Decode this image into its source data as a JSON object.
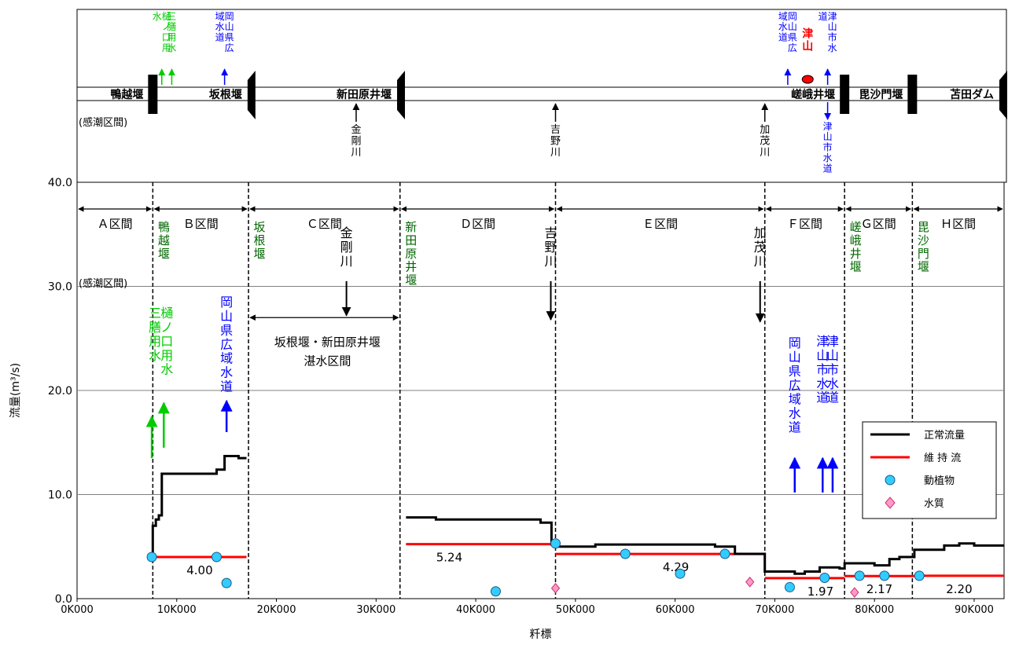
{
  "chart_data": {
    "type": "line",
    "title": "",
    "xlabel": "粁標",
    "ylabel": "流量(m³/s)",
    "xlim": [
      0,
      93000
    ],
    "ylim": [
      0,
      40
    ],
    "x_ticks": [
      0,
      10000,
      20000,
      30000,
      40000,
      50000,
      60000,
      70000,
      80000,
      90000
    ],
    "x_tick_labels": [
      "0K000",
      "10K000",
      "20K000",
      "30K000",
      "40K000",
      "50K000",
      "60K000",
      "70K000",
      "80K000",
      "90K000"
    ],
    "y_ticks": [
      0,
      10,
      20,
      30,
      40
    ],
    "y_tick_labels": [
      "0.0",
      "10.0",
      "20.0",
      "30.0",
      "40.0"
    ],
    "legend": {
      "position": "right",
      "items": [
        {
          "label": "正常流量",
          "kind": "line",
          "color": "#000000"
        },
        {
          "label": "維 持 流",
          "kind": "line",
          "color": "#ff0000"
        },
        {
          "label": "動植物",
          "kind": "circle",
          "color": "#33ccff"
        },
        {
          "label": "水質",
          "kind": "diamond",
          "color": "#ff99cc"
        }
      ]
    },
    "series": [
      {
        "name": "正常流量",
        "color": "#000000",
        "step_segments": [
          [
            [
              7600,
              4.0
            ],
            [
              7600,
              7.0
            ],
            [
              7900,
              7.0
            ],
            [
              7900,
              7.6
            ],
            [
              8200,
              7.6
            ],
            [
              8200,
              8.0
            ],
            [
              8500,
              8.0
            ],
            [
              8500,
              12.0
            ],
            [
              14000,
              12.0
            ],
            [
              14000,
              12.4
            ],
            [
              14800,
              12.4
            ],
            [
              14800,
              13.7
            ],
            [
              16200,
              13.7
            ],
            [
              16200,
              13.5
            ],
            [
              17000,
              13.5
            ]
          ],
          [
            [
              33000,
              7.8
            ],
            [
              36000,
              7.8
            ],
            [
              36000,
              7.6
            ],
            [
              46500,
              7.6
            ],
            [
              46500,
              7.3
            ],
            [
              47600,
              7.3
            ],
            [
              47600,
              5.2
            ],
            [
              48200,
              5.2
            ],
            [
              48200,
              5.0
            ],
            [
              52000,
              5.0
            ],
            [
              52000,
              5.2
            ],
            [
              64000,
              5.2
            ],
            [
              64000,
              5.0
            ],
            [
              66000,
              5.0
            ],
            [
              66000,
              4.3
            ],
            [
              69000,
              4.3
            ],
            [
              69000,
              2.6
            ],
            [
              72000,
              2.6
            ],
            [
              72000,
              2.4
            ],
            [
              73000,
              2.4
            ],
            [
              73000,
              2.6
            ],
            [
              74500,
              2.6
            ],
            [
              74500,
              3.0
            ],
            [
              76500,
              3.0
            ],
            [
              76500,
              2.9
            ],
            [
              77000,
              2.9
            ],
            [
              77000,
              3.4
            ],
            [
              80000,
              3.4
            ],
            [
              80000,
              3.2
            ],
            [
              81500,
              3.2
            ],
            [
              81500,
              3.8
            ],
            [
              82500,
              3.8
            ],
            [
              82500,
              4.0
            ],
            [
              84000,
              4.0
            ],
            [
              84000,
              4.7
            ],
            [
              87000,
              4.7
            ],
            [
              87000,
              5.1
            ],
            [
              88500,
              5.1
            ],
            [
              88500,
              5.3
            ],
            [
              90000,
              5.3
            ],
            [
              90000,
              5.1
            ],
            [
              93000,
              5.1
            ]
          ]
        ]
      },
      {
        "name": "維 持 流",
        "color": "#ff0000",
        "segments": [
          {
            "x0": 7600,
            "x1": 17000,
            "value": 4.0,
            "label": "4.00"
          },
          {
            "x0": 33000,
            "x1": 48000,
            "value": 5.24,
            "label": "5.24"
          },
          {
            "x0": 48000,
            "x1": 69000,
            "value": 4.29,
            "label": "4.29"
          },
          {
            "x0": 69000,
            "x1": 77000,
            "value": 1.97,
            "label": "1.97"
          },
          {
            "x0": 77000,
            "x1": 84000,
            "value": 2.17,
            "label": "2.17"
          },
          {
            "x0": 84000,
            "x1": 93000,
            "value": 2.2,
            "label": "2.20"
          }
        ]
      },
      {
        "name": "動植物",
        "color": "#33ccff",
        "points": [
          [
            7500,
            4.0
          ],
          [
            14000,
            4.0
          ],
          [
            15000,
            1.5
          ],
          [
            42000,
            0.7
          ],
          [
            48000,
            5.3
          ],
          [
            55000,
            4.3
          ],
          [
            60500,
            2.4
          ],
          [
            65000,
            4.3
          ],
          [
            71500,
            1.1
          ],
          [
            75000,
            2.0
          ],
          [
            78500,
            2.2
          ],
          [
            81000,
            2.2
          ],
          [
            84500,
            2.2
          ]
        ]
      },
      {
        "name": "水質",
        "color": "#ff99cc",
        "points": [
          [
            48000,
            1.0
          ],
          [
            67500,
            1.6
          ],
          [
            78000,
            0.6
          ]
        ]
      }
    ],
    "sections": [
      {
        "label": "Ａ区間",
        "x0": 0,
        "x1": 7600
      },
      {
        "label": "Ｂ区間",
        "x0": 7600,
        "x1": 17200
      },
      {
        "label": "Ｃ区間",
        "x0": 17200,
        "x1": 32400
      },
      {
        "label": "Ｄ区間",
        "x0": 32400,
        "x1": 48000
      },
      {
        "label": "Ｅ区間",
        "x0": 48000,
        "x1": 69000
      },
      {
        "label": "Ｆ区間",
        "x0": 69000,
        "x1": 77000
      },
      {
        "label": "Ｇ区間",
        "x0": 77000,
        "x1": 83800
      },
      {
        "label": "Ｈ区間",
        "x0": 83800,
        "x1": 93000
      }
    ],
    "boundaries": [
      7600,
      17200,
      32400,
      48000,
      69000,
      77000,
      83800
    ],
    "annotations": {
      "tidal": "(感潮区間)",
      "weirs": [
        {
          "x": 7600,
          "text": "鴨越堰"
        },
        {
          "x": 17200,
          "text": "坂根堰"
        },
        {
          "x": 32400,
          "text": "新田原井堰"
        },
        {
          "x": 77000,
          "text": "嵯峨井堰"
        },
        {
          "x": 83800,
          "text": "毘沙門堰"
        }
      ],
      "tributaries": [
        {
          "x": 27500,
          "text": "金剛川",
          "arrow_top": 30.5,
          "arrow_bottom": 27.2
        },
        {
          "x": 48000,
          "text": "吉野川",
          "arrow_top": 30.5,
          "arrow_bottom": 26.8
        },
        {
          "x": 69000,
          "text": "加茂川",
          "arrow_top": 30.5,
          "arrow_bottom": 26.6
        }
      ],
      "intakes": [
        {
          "x": 7500,
          "text": "三膳用水",
          "color": "#00cc00",
          "from": 13.5,
          "to": 17.5
        },
        {
          "x": 8700,
          "text": "樋ノ口用水",
          "color": "#00cc00",
          "from": 14.5,
          "to": 18.8
        },
        {
          "x": 15000,
          "text": "岡山県広域水道",
          "color": "#0000ff",
          "from": 16.0,
          "to": 19.0
        },
        {
          "x": 72000,
          "text": "岡山県広域水道",
          "color": "#0000ff",
          "from": 10.2,
          "to": 13.5
        },
        {
          "x": 74800,
          "text": "津山市水道",
          "color": "#0000ff",
          "from": 10.2,
          "to": 13.5
        },
        {
          "x": 75800,
          "text": "津山市水道",
          "color": "#0000ff",
          "from": 10.2,
          "to": 13.5
        }
      ],
      "stagnant_section": {
        "x0": 17200,
        "x1": 32400,
        "y": 27.0,
        "line1": "坂根堰・新田原井堰",
        "line2": "湛水区間"
      }
    }
  },
  "schematic": {
    "tidal": "(感潮区間)",
    "weirs": [
      {
        "x": 7600,
        "text": "鴨越堰",
        "shape": "rect"
      },
      {
        "x": 17500,
        "text": "坂根堰",
        "shape": "trap"
      },
      {
        "x": 32500,
        "text": "新田原井堰",
        "shape": "trap"
      },
      {
        "x": 77000,
        "text": "嵯峨井堰",
        "shape": "rect"
      },
      {
        "x": 83800,
        "text": "毘沙門堰",
        "shape": "rect"
      },
      {
        "x": 93000,
        "text": "苫田ダム",
        "shape": "trap"
      }
    ],
    "tributaries": [
      {
        "x": 28000,
        "text": "金剛川"
      },
      {
        "x": 48000,
        "text": "吉野川"
      },
      {
        "x": 69000,
        "text": "加茂川"
      }
    ],
    "intakes_up": [
      {
        "x": 8500,
        "text": "樋ノ口用水",
        "color": "#00cc00"
      },
      {
        "x": 9500,
        "text": "三膳用水",
        "color": "#00cc00"
      },
      {
        "x": 14800,
        "text": "岡山県広域水道",
        "color": "#0000ff"
      },
      {
        "x": 71300,
        "text": "岡山県広域水道",
        "color": "#0000ff"
      },
      {
        "x": 75300,
        "text": "津山市水道",
        "color": "#0000ff"
      }
    ],
    "intakes_down": [
      {
        "x": 75300,
        "text": "津山市水道",
        "color": "#0000ff"
      }
    ],
    "city": {
      "x": 73300,
      "text": "津山",
      "color": "#ff0000"
    }
  }
}
